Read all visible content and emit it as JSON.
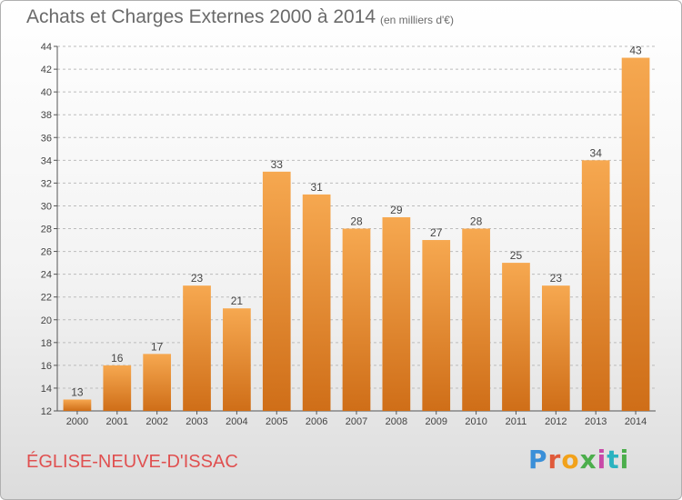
{
  "header": {
    "title": "Achats et Charges Externes 2000 à 2014",
    "unit": "(en milliers d'€)"
  },
  "footer": {
    "commune": "ÉGLISE-NEUVE-D'ISSAC",
    "logo": [
      "P",
      "r",
      "o",
      "x",
      "i",
      "t",
      "i"
    ]
  },
  "colors": {
    "bar_top": "#f6a850",
    "bar_bottom": "#cf6e18",
    "title": "#6a6a6a",
    "commune": "#e05050",
    "grid": "#bcbcbc"
  },
  "chart_data": {
    "type": "bar",
    "title": "Achats et Charges Externes 2000 à 2014",
    "subtitle": "(en milliers d'€)",
    "xlabel": "",
    "ylabel": "",
    "categories": [
      "2000",
      "2001",
      "2002",
      "2003",
      "2004",
      "2005",
      "2006",
      "2007",
      "2008",
      "2009",
      "2010",
      "2011",
      "2012",
      "2013",
      "2014"
    ],
    "values": [
      13,
      16,
      17,
      23,
      21,
      33,
      31,
      28,
      29,
      27,
      28,
      25,
      23,
      34,
      43
    ],
    "ylim": [
      12,
      44
    ],
    "yticks": [
      12,
      14,
      16,
      18,
      20,
      22,
      24,
      26,
      28,
      30,
      32,
      34,
      36,
      38,
      40,
      42,
      44
    ],
    "grid": true,
    "data_labels": true
  }
}
